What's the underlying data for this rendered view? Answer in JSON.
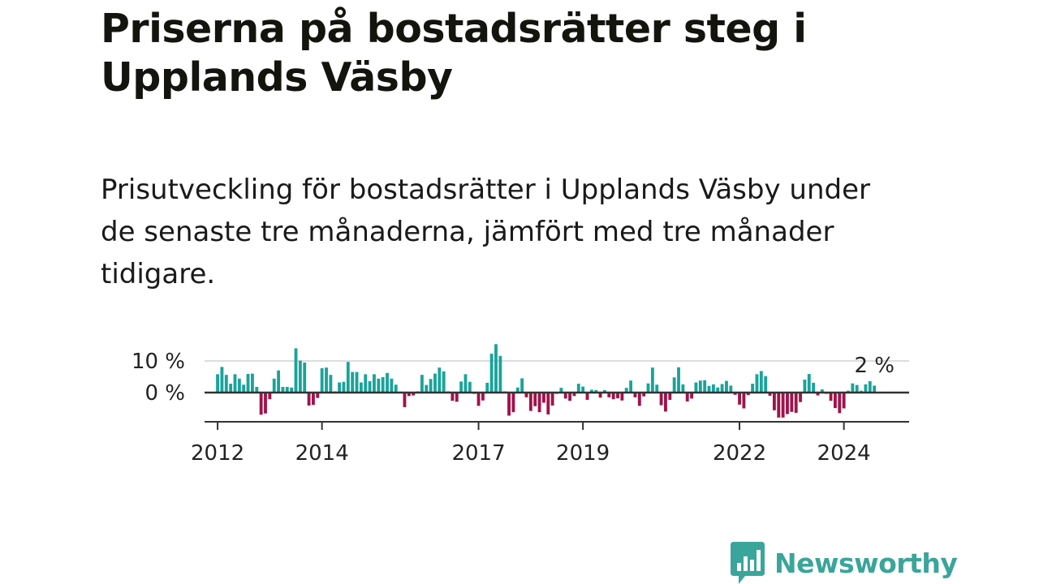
{
  "title": "Priserna på bostadsrätter steg i Upplands Väsby",
  "subtitle": "Prisutveckling för bostadsrätter i Upplands Väsby under de senaste tre månaderna, jämfört med tre månader tidigare.",
  "logo": {
    "text": "Newsworthy",
    "icon": "newsworthy-chart-icon"
  },
  "colors": {
    "positive": "#1aa39a",
    "negative": "#a0134a",
    "gridline": "#dddddd",
    "axis": "#333333",
    "logo": "#3aa59a"
  },
  "chart_data": {
    "type": "bar",
    "ylabel": "",
    "xlabel": "",
    "y_ticks": [
      {
        "value": 0,
        "label": "0 %"
      },
      {
        "value": 10,
        "label": "10 %"
      }
    ],
    "x_ticks": [
      {
        "value": 2012,
        "label": "2012"
      },
      {
        "value": 2014,
        "label": "2014"
      },
      {
        "value": 2017,
        "label": "2017"
      },
      {
        "value": 2019,
        "label": "2019"
      },
      {
        "value": 2022,
        "label": "2022"
      },
      {
        "value": 2024,
        "label": "2024"
      }
    ],
    "end_label": "2 %",
    "ylim": [
      -9,
      16
    ],
    "xlim": [
      2011.75,
      2025.25
    ],
    "grid": "horizontal",
    "start": "2012-01",
    "frequency": "monthly",
    "values": [
      5.8,
      8.1,
      5.6,
      2.8,
      5.8,
      4.4,
      2.5,
      5.9,
      6.0,
      1.8,
      -7.0,
      -6.6,
      -2.1,
      4.4,
      7.0,
      1.8,
      1.8,
      1.6,
      14.0,
      10.1,
      9.5,
      -4.1,
      -3.9,
      -1.7,
      7.7,
      7.9,
      5.6,
      0.4,
      3.2,
      3.4,
      9.7,
      6.5,
      6.5,
      3.2,
      5.8,
      3.6,
      5.8,
      4.4,
      4.9,
      6.2,
      4.4,
      2.5,
      0.3,
      -4.6,
      -1.1,
      -0.9,
      0.4,
      5.6,
      2.4,
      4.3,
      6.0,
      7.9,
      6.7,
      0.4,
      -2.6,
      -2.9,
      3.5,
      5.8,
      3.4,
      -0.4,
      -4.2,
      -2.5,
      3.1,
      12.3,
      15.3,
      11.6,
      0.4,
      -7.3,
      -6.2,
      1.6,
      4.5,
      -1.5,
      -5.8,
      -4.3,
      -6.2,
      -3.2,
      -6.9,
      -4.1,
      -0.4,
      1.5,
      -1.9,
      -2.6,
      -1.1,
      2.8,
      1.9,
      -2.3,
      0.9,
      0.8,
      -1.6,
      0.8,
      -1.5,
      -2.1,
      -1.8,
      -2.5,
      1.5,
      3.8,
      -1.5,
      -4.2,
      -1.2,
      2.9,
      7.9,
      2.5,
      -4.0,
      -6.0,
      -2.3,
      4.8,
      8.0,
      2.6,
      -2.8,
      -1.9,
      3.2,
      3.8,
      3.9,
      2.1,
      2.6,
      1.6,
      2.7,
      3.7,
      2.2,
      -0.7,
      -3.8,
      -5.0,
      -0.8,
      2.8,
      5.8,
      6.8,
      5.2,
      -1.0,
      -5.6,
      -7.9,
      -7.9,
      -6.8,
      -6.1,
      -6.4,
      -3.0,
      4.1,
      5.9,
      3.1,
      -0.9,
      1.0,
      -0.4,
      -2.6,
      -4.9,
      -6.5,
      -5.0,
      0.6,
      2.9,
      2.4,
      0.6,
      2.6,
      3.6,
      2.2
    ]
  }
}
